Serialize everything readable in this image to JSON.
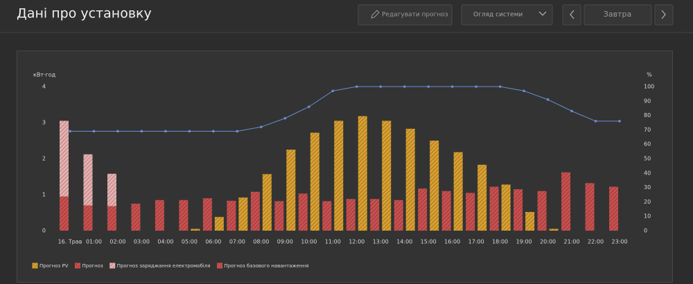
{
  "header": {
    "title": "Дані про установку",
    "edit_button": "Редагувати прогноз",
    "view_select": "Огляд системи",
    "day_button": "Завтра"
  },
  "chart_data": {
    "type": "bar",
    "ylabel": "кВт·год",
    "y2label": "%",
    "categories": [
      "16. Трав",
      "01:00",
      "02:00",
      "03:00",
      "04:00",
      "05:00",
      "06:00",
      "07:00",
      "08:00",
      "09:00",
      "10:00",
      "11:00",
      "12:00",
      "13:00",
      "14:00",
      "15:00",
      "16:00",
      "17:00",
      "18:00",
      "19:00",
      "20:00",
      "21:00",
      "22:00",
      "23:00"
    ],
    "series": [
      {
        "name": "Прогноз PV",
        "color": "#d9a030",
        "values": [
          null,
          null,
          null,
          null,
          null,
          0.05,
          0.38,
          0.92,
          1.57,
          2.25,
          2.72,
          3.05,
          3.18,
          3.05,
          2.83,
          2.5,
          2.18,
          1.83,
          1.28,
          0.52,
          0.05,
          null,
          null,
          null
        ]
      },
      {
        "name": "Прогноз",
        "color": "#c9504f",
        "values": [
          null,
          null,
          null,
          null,
          null,
          null,
          null,
          null,
          null,
          null,
          null,
          null,
          null,
          null,
          null,
          null,
          null,
          null,
          null,
          null,
          null,
          null,
          null,
          null
        ]
      },
      {
        "name": "Прогноз заряджання електромобіля",
        "color": "#e8b0b0",
        "values": [
          2.1,
          1.42,
          0.9,
          null,
          null,
          null,
          null,
          null,
          null,
          null,
          null,
          null,
          null,
          null,
          null,
          null,
          null,
          null,
          null,
          null,
          null,
          null,
          null,
          null
        ]
      },
      {
        "name": "Прогноз базового навантаження",
        "color": "#c9504f",
        "values": [
          0.95,
          0.7,
          0.68,
          0.75,
          0.85,
          0.85,
          0.9,
          0.83,
          1.08,
          0.82,
          1.03,
          0.82,
          0.88,
          0.88,
          0.85,
          1.17,
          1.1,
          1.05,
          1.22,
          1.15,
          1.1,
          1.62,
          1.32,
          1.22
        ]
      }
    ],
    "line": {
      "axis": "y2",
      "color": "#6a8fd0",
      "values": [
        69,
        69,
        69,
        69,
        69,
        69,
        69,
        69,
        72,
        78,
        86,
        97,
        100,
        100,
        100,
        100,
        100,
        100,
        100,
        97,
        91,
        83,
        76,
        76
      ]
    },
    "ylim": [
      0,
      4
    ],
    "yticks": [
      0,
      1,
      2,
      3,
      4
    ],
    "y2lim": [
      0,
      100
    ],
    "y2ticks": [
      0,
      10,
      20,
      30,
      40,
      50,
      60,
      70,
      80,
      90,
      100
    ],
    "legend": "bottom-left"
  }
}
